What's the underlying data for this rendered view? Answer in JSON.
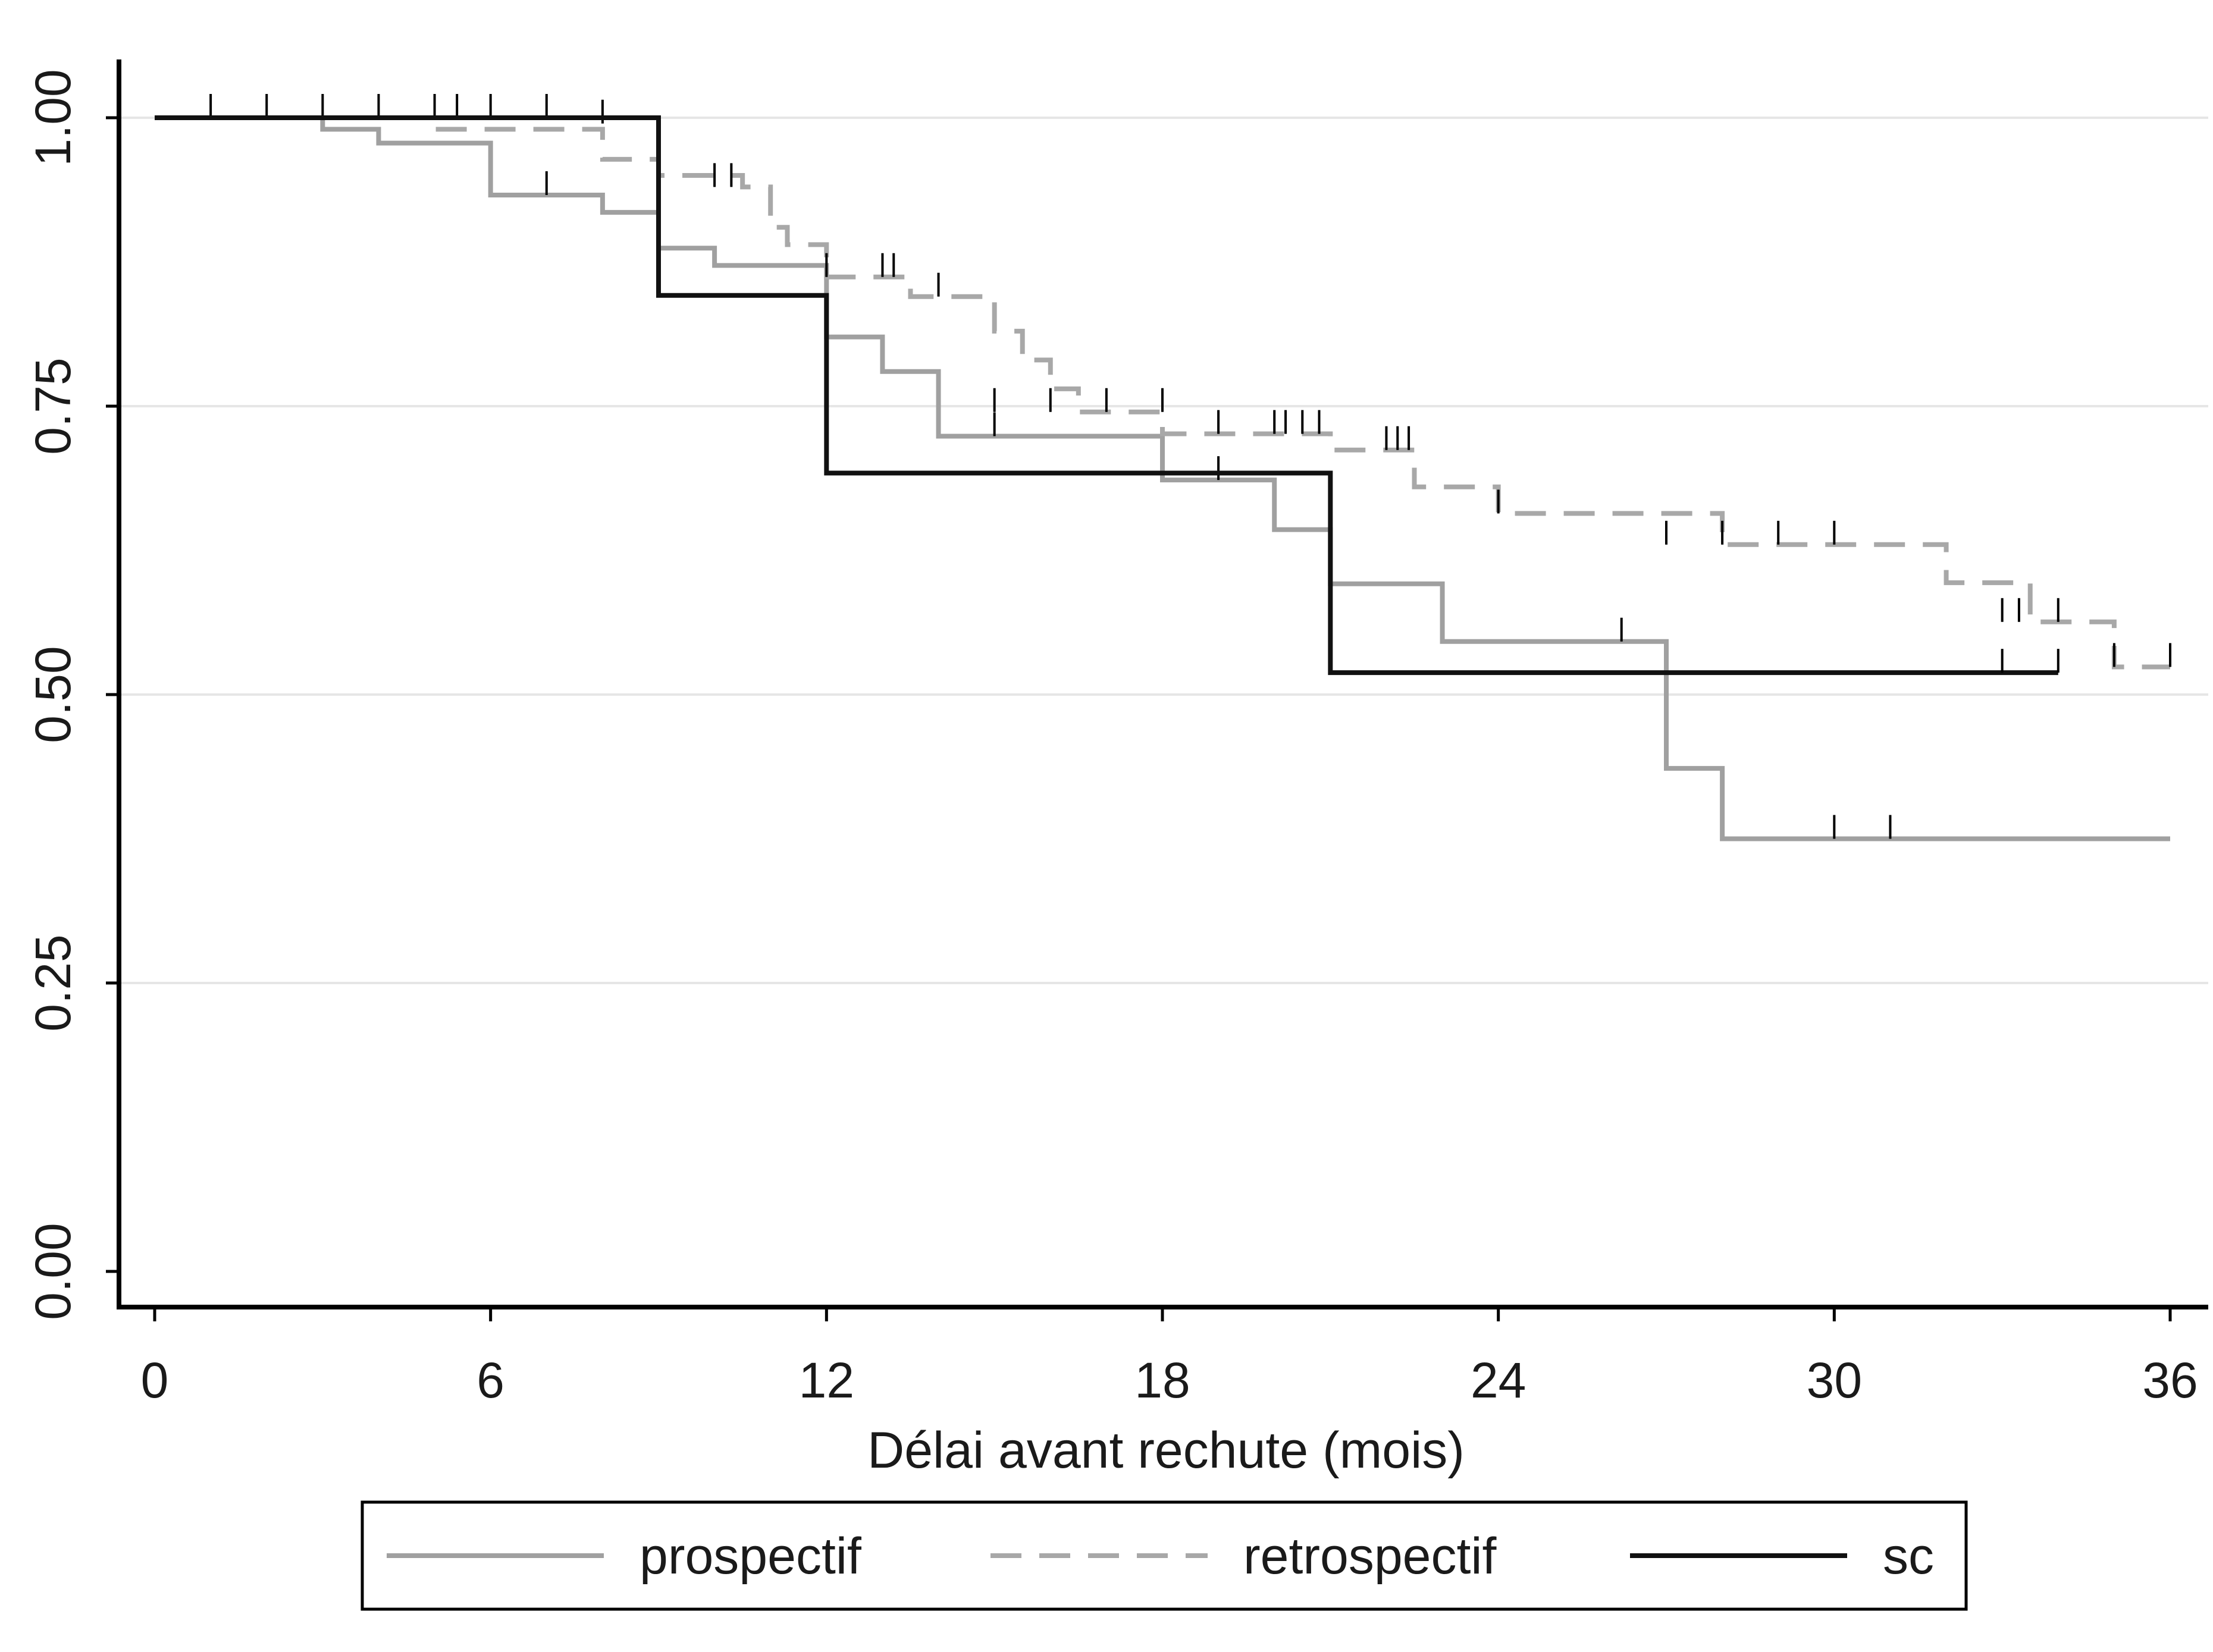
{
  "chart_data": {
    "type": "line",
    "subtype": "kaplan-meier step survival curves with censoring ticks",
    "xlabel": "Délai avant rechute (mois)",
    "ylabel": "",
    "xlim": [
      0,
      36
    ],
    "ylim": [
      0,
      1
    ],
    "xticks": [
      0,
      6,
      12,
      18,
      24,
      30,
      36
    ],
    "yticks": [
      0.0,
      0.25,
      0.5,
      0.75,
      1.0
    ],
    "xtick_labels": [
      "0",
      "6",
      "12",
      "18",
      "24",
      "30",
      "36"
    ],
    "ytick_labels": [
      "0.00",
      "0.25",
      "0.50",
      "0.75",
      "1.00"
    ],
    "grid": "horizontal",
    "legend_position": "bottom",
    "series": [
      {
        "name": "prospectif",
        "color": "#a0a0a0",
        "dash": "solid",
        "steps": [
          [
            0,
            1.0
          ],
          [
            3,
            0.99
          ],
          [
            4,
            0.978
          ],
          [
            6,
            0.933
          ],
          [
            8,
            0.918
          ],
          [
            9,
            0.887
          ],
          [
            10,
            0.872
          ],
          [
            12,
            0.81
          ],
          [
            13,
            0.78
          ],
          [
            14,
            0.724
          ],
          [
            18,
            0.686
          ],
          [
            20,
            0.643
          ],
          [
            21,
            0.596
          ],
          [
            23,
            0.546
          ],
          [
            27,
            0.436
          ],
          [
            28,
            0.375
          ],
          [
            36,
            0.375
          ]
        ],
        "censored": [
          [
            7,
            0.933
          ],
          [
            15,
            0.724
          ],
          [
            19,
            0.686
          ],
          [
            26.2,
            0.546
          ],
          [
            30,
            0.375
          ],
          [
            31,
            0.375
          ]
        ]
      },
      {
        "name": "retrospectif",
        "color": "#a8a8a8",
        "dash": "dashed",
        "steps": [
          [
            0,
            1.0
          ],
          [
            5,
            0.99
          ],
          [
            8,
            0.964
          ],
          [
            9,
            0.95
          ],
          [
            10.5,
            0.94
          ],
          [
            11,
            0.905
          ],
          [
            11.3,
            0.89
          ],
          [
            12,
            0.862
          ],
          [
            13.5,
            0.845
          ],
          [
            15,
            0.815
          ],
          [
            15.5,
            0.79
          ],
          [
            16,
            0.765
          ],
          [
            16.5,
            0.745
          ],
          [
            18,
            0.726
          ],
          [
            21,
            0.712
          ],
          [
            22.5,
            0.68
          ],
          [
            23,
            0.68
          ],
          [
            24,
            0.657
          ],
          [
            28,
            0.63
          ],
          [
            32,
            0.597
          ],
          [
            33.5,
            0.563
          ],
          [
            35,
            0.524
          ],
          [
            36,
            0.524
          ]
        ],
        "censored": [
          [
            1,
            1.0
          ],
          [
            2,
            1.0
          ],
          [
            3,
            1.0
          ],
          [
            4,
            1.0
          ],
          [
            5,
            1.0
          ],
          [
            5.4,
            1.0
          ],
          [
            6,
            1.0
          ],
          [
            7,
            1.0
          ],
          [
            8,
            0.995
          ],
          [
            10,
            0.94
          ],
          [
            10.3,
            0.94
          ],
          [
            12,
            0.862
          ],
          [
            13,
            0.862
          ],
          [
            13.2,
            0.862
          ],
          [
            14,
            0.845
          ],
          [
            15,
            0.745
          ],
          [
            16,
            0.745
          ],
          [
            17,
            0.745
          ],
          [
            18,
            0.745
          ],
          [
            19,
            0.726
          ],
          [
            20,
            0.726
          ],
          [
            20.2,
            0.726
          ],
          [
            20.5,
            0.726
          ],
          [
            20.8,
            0.726
          ],
          [
            22,
            0.712
          ],
          [
            22.2,
            0.712
          ],
          [
            22.4,
            0.712
          ],
          [
            24,
            0.657
          ],
          [
            27,
            0.63
          ],
          [
            28,
            0.63
          ],
          [
            29,
            0.63
          ],
          [
            30,
            0.63
          ],
          [
            33,
            0.563
          ],
          [
            33.3,
            0.563
          ],
          [
            34,
            0.563
          ],
          [
            35,
            0.524
          ],
          [
            36,
            0.524
          ]
        ]
      },
      {
        "name": "sc",
        "color": "#111111",
        "dash": "solid",
        "steps": [
          [
            0,
            1.0
          ],
          [
            9,
            0.846
          ],
          [
            12,
            0.692
          ],
          [
            21,
            0.519
          ],
          [
            34,
            0.519
          ]
        ],
        "censored": [
          [
            33,
            0.519
          ],
          [
            34,
            0.519
          ]
        ]
      }
    ]
  },
  "legend": {
    "items": [
      {
        "label": "prospectif"
      },
      {
        "label": "retrospectif"
      },
      {
        "label": "sc"
      }
    ]
  }
}
